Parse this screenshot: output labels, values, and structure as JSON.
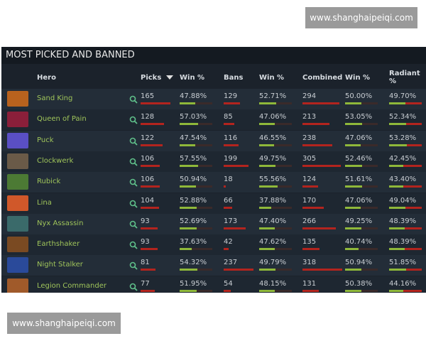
{
  "watermarks": [
    "www.shanghaipeiqi.com",
    "www.shanghaipeiqi.com"
  ],
  "table": {
    "title": "MOST PICKED AND BANNED",
    "headers": [
      "Hero",
      "Picks",
      "Win %",
      "Bans",
      "Win %",
      "Combined",
      "Win %",
      "Radiant %"
    ],
    "rows": [
      [
        "Sand King",
        165,
        "47.88%",
        129,
        "52.71%",
        294,
        "50.00%",
        "49.70%"
      ],
      [
        "Queen of Pain",
        128,
        "57.03%",
        85,
        "47.06%",
        213,
        "53.05%",
        "52.34%"
      ],
      [
        "Puck",
        122,
        "47.54%",
        116,
        "46.55%",
        238,
        "47.06%",
        "53.28%"
      ],
      [
        "Clockwerk",
        106,
        "57.55%",
        199,
        "49.75%",
        305,
        "52.46%",
        "42.45%"
      ],
      [
        "Rubick",
        106,
        "50.94%",
        18,
        "55.56%",
        124,
        "51.61%",
        "43.40%"
      ],
      [
        "Lina",
        104,
        "52.88%",
        66,
        "37.88%",
        170,
        "47.06%",
        "49.04%"
      ],
      [
        "Nyx Assassin",
        93,
        "52.69%",
        173,
        "47.40%",
        266,
        "49.25%",
        "48.39%"
      ],
      [
        "Earthshaker",
        93,
        "37.63%",
        42,
        "47.62%",
        135,
        "40.74%",
        "48.39%"
      ],
      [
        "Night Stalker",
        81,
        "54.32%",
        237,
        "49.79%",
        318,
        "50.94%",
        "51.85%"
      ],
      [
        "Legion Commander",
        77,
        "51.95%",
        54,
        "48.15%",
        131,
        "50.38%",
        "44.16%"
      ]
    ]
  }
}
